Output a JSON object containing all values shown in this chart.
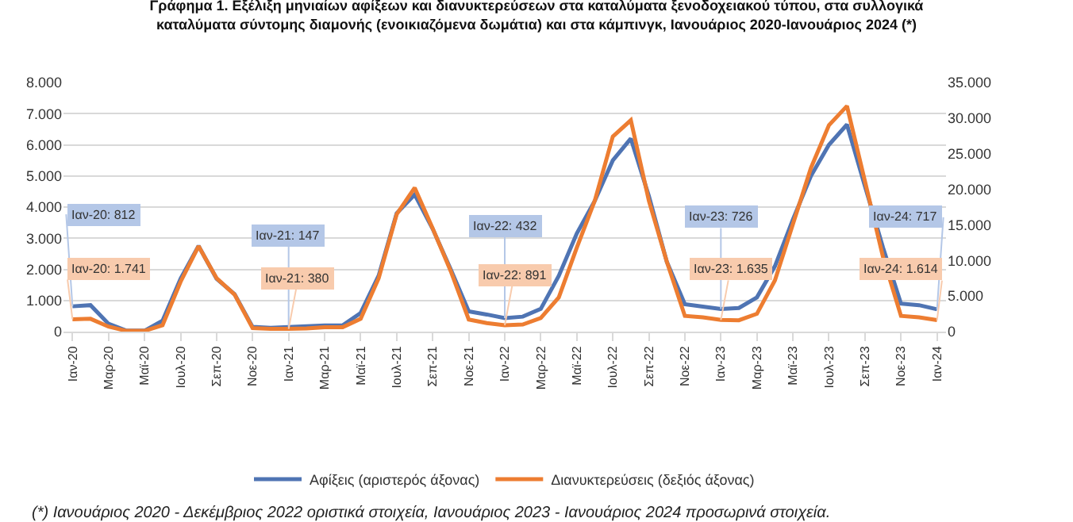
{
  "chart_data": {
    "type": "line",
    "title": "Γράφημα 1. Εξέλιξη μηνιαίων αφίξεων και διανυκτερεύσεων στα καταλύματα ξενοδοχειακού τύπου, στα συλλογικά καταλύματα σύντομης διαμονής (ενοικιαζόμενα δωμάτια) και στα κάμπινγκ, Ιανουάριος 2020-Ιανουάριος 2024 (*)",
    "categories": [
      "Ιαν-20",
      null,
      "Μαρ-20",
      null,
      "Μαϊ-20",
      null,
      "Ιουλ-20",
      null,
      "Σεπ-20",
      null,
      "Νοε-20",
      null,
      "Ιαν-21",
      null,
      "Μαρ-21",
      null,
      "Μαϊ-21",
      null,
      "Ιουλ-21",
      null,
      "Σεπ-21",
      null,
      "Νοε-21",
      null,
      "Ιαν-22",
      null,
      "Μαρ-22",
      null,
      "Μαϊ-22",
      null,
      "Ιουλ-22",
      null,
      "Σεπ-22",
      null,
      "Νοε-22",
      null,
      "Ιαν-23",
      null,
      "Μαρ-23",
      null,
      "Μαϊ-23",
      null,
      "Ιουλ-23",
      null,
      "Σεπ-23",
      null,
      "Νοε-23",
      null,
      "Ιαν-24"
    ],
    "series": [
      {
        "name": "Αφίξεις (αριστερός άξονας)",
        "color": "#4f74b3",
        "values": [
          812,
          850,
          250,
          30,
          30,
          350,
          1700,
          2750,
          1700,
          1200,
          150,
          120,
          147,
          170,
          200,
          200,
          600,
          1800,
          3800,
          4400,
          3300,
          2000,
          650,
          550,
          432,
          480,
          730,
          1790,
          3150,
          4200,
          5500,
          6200,
          4360,
          2240,
          880,
          800,
          726,
          760,
          1100,
          2100,
          3600,
          5000,
          6000,
          6650,
          4670,
          2700,
          900,
          850,
          717
        ],
        "value_labels": [
          "Ιαν-20: 812",
          null,
          null,
          null,
          null,
          null,
          null,
          null,
          null,
          null,
          null,
          null,
          "Ιαν-21: 147",
          null,
          null,
          null,
          null,
          null,
          null,
          null,
          null,
          null,
          null,
          null,
          "Ιαν-22: 432",
          null,
          null,
          null,
          null,
          null,
          null,
          null,
          null,
          null,
          null,
          null,
          "Ιαν-23: 726",
          null,
          null,
          null,
          null,
          null,
          null,
          null,
          null,
          null,
          null,
          null,
          "Ιαν-24: 717"
        ]
      },
      {
        "name": "Διανυκτερεύσεις (δεξιός άξονας)",
        "color": "#ed7d31",
        "axis": "y2",
        "values": [
          1741,
          1800,
          700,
          100,
          100,
          900,
          7000,
          12000,
          7500,
          5200,
          500,
          400,
          380,
          450,
          600,
          600,
          1800,
          7500,
          16500,
          20200,
          14500,
          8500,
          1700,
          1200,
          891,
          1000,
          1900,
          4800,
          11800,
          18400,
          27400,
          29700,
          18400,
          9800,
          2200,
          2000,
          1635,
          1600,
          2500,
          7200,
          15100,
          23000,
          29000,
          31700,
          21100,
          10500,
          2200,
          2000,
          1614
        ],
        "value_labels": [
          "Ιαν-20: 1.741",
          null,
          null,
          null,
          null,
          null,
          null,
          null,
          null,
          null,
          null,
          null,
          "Ιαν-21: 380",
          null,
          null,
          null,
          null,
          null,
          null,
          null,
          null,
          null,
          null,
          null,
          "Ιαν-22: 891",
          null,
          null,
          null,
          null,
          null,
          null,
          null,
          null,
          null,
          null,
          null,
          "Ιαν-23: 1.635",
          null,
          null,
          null,
          null,
          null,
          null,
          null,
          null,
          null,
          null,
          null,
          "Ιαν-24: 1.614"
        ]
      }
    ],
    "ylim": [
      0,
      8000
    ],
    "yticks": [
      0,
      {
        "value": 1000,
        "label": "1.000"
      },
      {
        "value": 2000,
        "label": "2.000"
      },
      {
        "value": 3000,
        "label": "3.000"
      },
      {
        "value": 4000,
        "label": "4.000"
      },
      {
        "value": 5000,
        "label": "5.000"
      },
      {
        "value": 6000,
        "label": "6.000"
      },
      {
        "value": 7000,
        "label": "7.000"
      },
      {
        "value": 8000,
        "label": "8.000"
      }
    ],
    "y2lim": [
      0,
      35000
    ],
    "y2ticks": [
      0,
      {
        "value": 5000,
        "label": "5.000"
      },
      {
        "value": 10000,
        "label": "10.000"
      },
      {
        "value": 15000,
        "label": "15.000"
      },
      {
        "value": 20000,
        "label": "20.000"
      },
      {
        "value": 25000,
        "label": "25.000"
      },
      {
        "value": 30000,
        "label": "30.000"
      },
      {
        "value": 35000,
        "label": "35.000"
      }
    ],
    "grid": "y",
    "legend": "bottom",
    "marker": "none",
    "line_style": "solid",
    "annotations": [
      "(*) Ιανουάριος 2020 - Δεκέμβριος 2022 οριστικά στοιχεία, Ιανουάριος 2023 - Ιανουάριος 2024 προσωρινά στοιχεία."
    ]
  }
}
